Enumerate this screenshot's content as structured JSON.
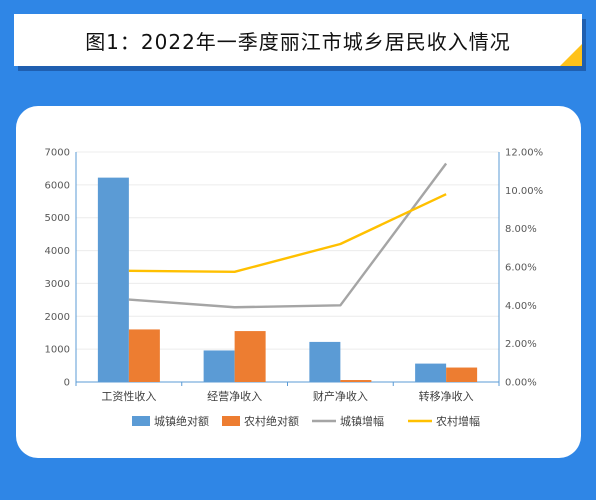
{
  "title": "图1：2022年一季度丽江市城乡居民收入情况",
  "colors": {
    "background": "#2f86e6",
    "urban_bar": "#5b9bd5",
    "rural_bar": "#ed7d31",
    "urban_line": "#a5a5a5",
    "rural_line": "#ffc000",
    "accent": "#ffc21a"
  },
  "chart_data": {
    "type": "bar",
    "title": "",
    "categories": [
      "工资性收入",
      "经营净收入",
      "财产净收入",
      "转移净收入"
    ],
    "y_left": {
      "ylim": [
        0,
        7000
      ],
      "ticks": [
        "0",
        "1000",
        "2000",
        "3000",
        "4000",
        "5000",
        "6000",
        "7000"
      ]
    },
    "y_right": {
      "ylim": [
        0,
        12
      ],
      "unit": "%",
      "ticks": [
        "0.00%",
        "2.00%",
        "4.00%",
        "6.00%",
        "8.00%",
        "10.00%",
        "12.00%"
      ]
    },
    "series": [
      {
        "name": "城镇绝对额",
        "type": "bar",
        "axis": "left",
        "values": [
          6220,
          960,
          1220,
          560
        ]
      },
      {
        "name": "农村绝对额",
        "type": "bar",
        "axis": "left",
        "values": [
          1600,
          1550,
          60,
          440
        ]
      },
      {
        "name": "城镇增幅",
        "type": "line",
        "axis": "right",
        "values": [
          4.3,
          3.9,
          4.0,
          11.4
        ]
      },
      {
        "name": "农村增幅",
        "type": "line",
        "axis": "right",
        "values": [
          5.8,
          5.75,
          7.2,
          9.8
        ]
      }
    ],
    "grid": true,
    "legend": "bottom"
  }
}
